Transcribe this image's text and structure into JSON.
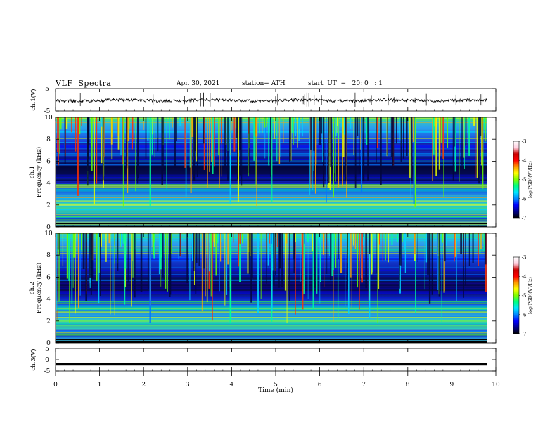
{
  "header": {
    "title": "VLF  Spectra",
    "date": "Apr. 30, 2021",
    "station": "station= ATH",
    "start": "start  UT  =   20: 0   : 1"
  },
  "chart_data": {
    "type": "heatmap",
    "xlabel": "Time  (min)",
    "xlim": [
      0,
      10
    ],
    "x_ticks": [
      "0",
      "1",
      "2",
      "3",
      "4",
      "5",
      "6",
      "7",
      "8",
      "9",
      "10"
    ],
    "data_extent_min": 9.8,
    "panels": [
      {
        "id": "ch1-waveform",
        "type": "line",
        "ylabel": "ch.1(V)",
        "ylim": [
          -5,
          5
        ],
        "y_ticks": [
          "5",
          "-5"
        ],
        "level": 0.0
      },
      {
        "id": "ch1-spectrogram",
        "type": "heatmap",
        "ylabel_lines": [
          "ch.1",
          "Frequency  (kHz)"
        ],
        "ylim": [
          0,
          10
        ],
        "y_ticks": [
          "0",
          "2",
          "4",
          "6",
          "8",
          "10"
        ],
        "colorbar": {
          "label": "log(PSD)(V²/Hz)",
          "range": [
            -7,
            -3
          ],
          "ticks": [
            "-3",
            "-4",
            "-5",
            "-6",
            "-7"
          ]
        }
      },
      {
        "id": "ch2-spectrogram",
        "type": "heatmap",
        "ylabel_lines": [
          "ch.2",
          "Frequency  (kHz)"
        ],
        "ylim": [
          0,
          10
        ],
        "y_ticks": [
          "0",
          "2",
          "4",
          "6",
          "8",
          "10"
        ],
        "colorbar": {
          "label": "log(PSD)(V²/Hz)",
          "range": [
            -7,
            -3
          ],
          "ticks": [
            "-3",
            "-4",
            "-5",
            "-6",
            "-7"
          ]
        }
      },
      {
        "id": "ch3-waveform",
        "type": "line",
        "ylabel": "ch.3(V)",
        "ylim": [
          -5,
          5
        ],
        "y_ticks": [
          "5",
          "0",
          "-5"
        ],
        "level": -2.0
      }
    ],
    "colormap": [
      "#000000",
      "#1a0a8c",
      "#0000ff",
      "#0077ff",
      "#00d4ff",
      "#00ff99",
      "#66ff00",
      "#e6ff00",
      "#ffaa00",
      "#ff3300",
      "#dd0000",
      "#ffffff"
    ]
  }
}
